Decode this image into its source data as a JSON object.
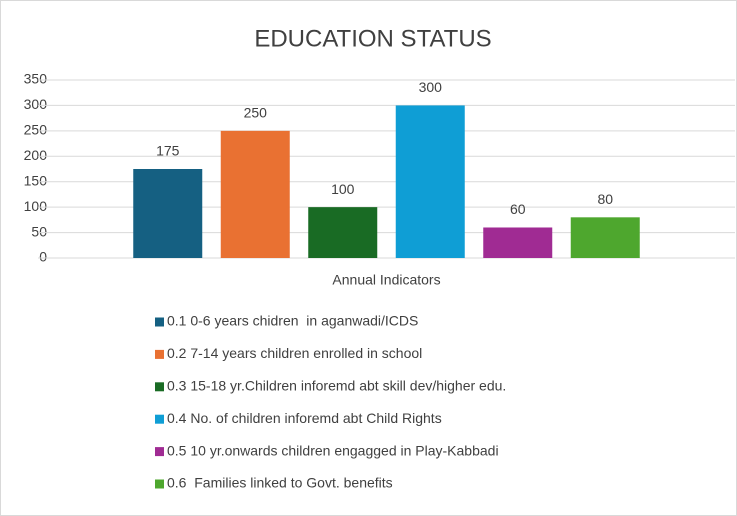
{
  "chart_data": {
    "type": "bar",
    "title": "EDUCATION STATUS",
    "categories": [
      "Annual Indicators"
    ],
    "series": [
      {
        "name": "0.1 0-6 years chidren  in aganwadi/ICDS",
        "color": "#156082",
        "values": [
          175
        ]
      },
      {
        "name": "0.2 7-14 years children enrolled in school",
        "color": "#e97132",
        "values": [
          250
        ]
      },
      {
        "name": "0.3 15-18 yr.Children inforemd abt skill dev/higher edu.",
        "color": "#196b24",
        "values": [
          100
        ]
      },
      {
        "name": "0.4 No. of children inforemd abt Child Rights",
        "color": "#0f9ed5",
        "values": [
          300
        ]
      },
      {
        "name": "0.5 10 yr.onwards children engagged in Play-Kabbadi",
        "color": "#a02b93",
        "values": [
          60
        ]
      },
      {
        "name": "0.6  Families linked to Govt. benefits",
        "color": "#4ea72e",
        "values": [
          80
        ]
      }
    ],
    "ylim": [
      0,
      350
    ],
    "yticks": [
      0,
      50,
      100,
      150,
      200,
      250,
      300,
      350
    ],
    "grid": true,
    "legend": "bottom"
  }
}
